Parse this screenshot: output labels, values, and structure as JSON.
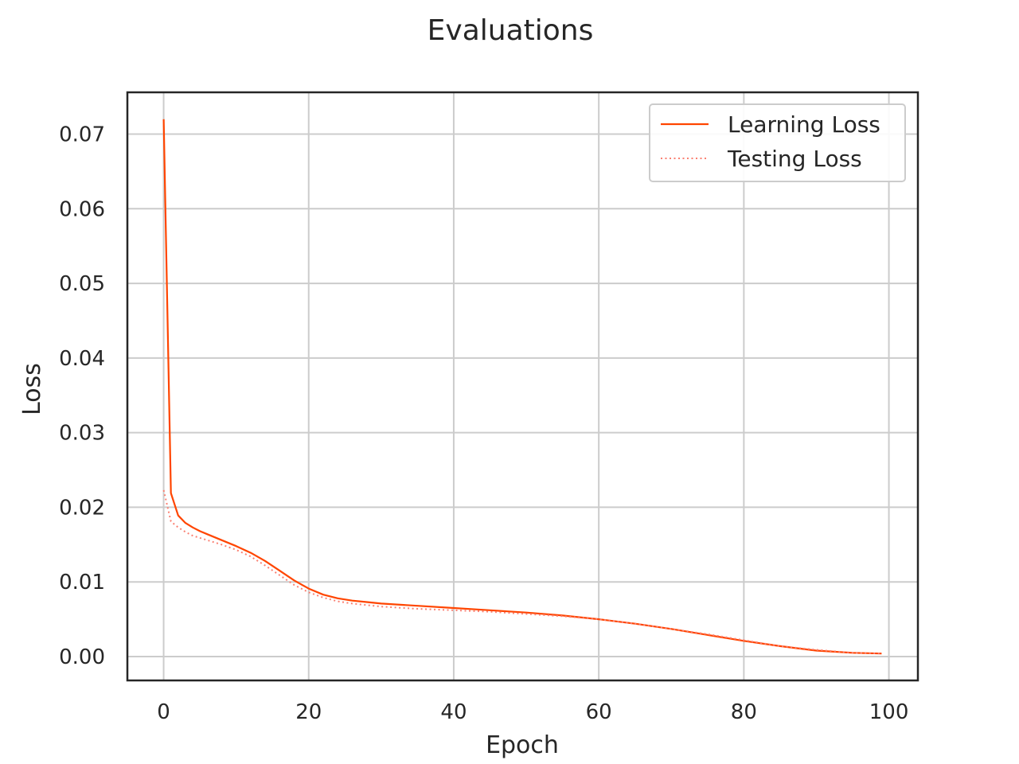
{
  "chart_data": {
    "type": "line",
    "title": "Evaluations",
    "xlabel": "Epoch",
    "ylabel": "Loss",
    "xlim": [
      -5,
      104
    ],
    "ylim": [
      -0.0032,
      0.0756
    ],
    "xticks": [
      0,
      20,
      40,
      60,
      80,
      100
    ],
    "yticks": [
      0.0,
      0.01,
      0.02,
      0.03,
      0.04,
      0.05,
      0.06,
      0.07
    ],
    "xtick_labels": [
      "0",
      "20",
      "40",
      "60",
      "80",
      "100"
    ],
    "ytick_labels": [
      "0.00",
      "0.01",
      "0.02",
      "0.03",
      "0.04",
      "0.05",
      "0.06",
      "0.07"
    ],
    "grid": true,
    "legend_position": "top-right",
    "series": [
      {
        "name": "Learning Loss",
        "color": "#ff4500",
        "style": "solid",
        "x": [
          0,
          1,
          2,
          3,
          4,
          5,
          6,
          8,
          10,
          12,
          14,
          16,
          18,
          20,
          22,
          24,
          26,
          28,
          30,
          35,
          40,
          45,
          50,
          55,
          60,
          65,
          70,
          75,
          80,
          85,
          90,
          95,
          99
        ],
        "y": [
          0.072,
          0.0219,
          0.0189,
          0.0179,
          0.0173,
          0.0168,
          0.0164,
          0.0156,
          0.0148,
          0.0139,
          0.0128,
          0.0115,
          0.0102,
          0.0091,
          0.0083,
          0.0078,
          0.0075,
          0.0073,
          0.0071,
          0.0068,
          0.0065,
          0.0062,
          0.0059,
          0.0055,
          0.005,
          0.0044,
          0.0037,
          0.0029,
          0.0021,
          0.0014,
          0.0008,
          0.0005,
          0.0004
        ]
      },
      {
        "name": "Testing Loss",
        "color": "#fa8072",
        "style": "dotted",
        "x": [
          0,
          1,
          2,
          3,
          4,
          5,
          6,
          8,
          10,
          12,
          14,
          16,
          18,
          20,
          22,
          24,
          26,
          28,
          30,
          35,
          40,
          45,
          50,
          55,
          60,
          65,
          70,
          75,
          80,
          85,
          90,
          95,
          99
        ],
        "y": [
          0.0223,
          0.0181,
          0.0173,
          0.0167,
          0.0162,
          0.0159,
          0.0156,
          0.015,
          0.0143,
          0.0134,
          0.0122,
          0.0109,
          0.0096,
          0.0086,
          0.0079,
          0.0074,
          0.0071,
          0.0069,
          0.0067,
          0.0064,
          0.0062,
          0.006,
          0.0057,
          0.0054,
          0.005,
          0.0044,
          0.0037,
          0.003,
          0.0022,
          0.0014,
          0.0009,
          0.0005,
          0.0004
        ]
      }
    ]
  }
}
